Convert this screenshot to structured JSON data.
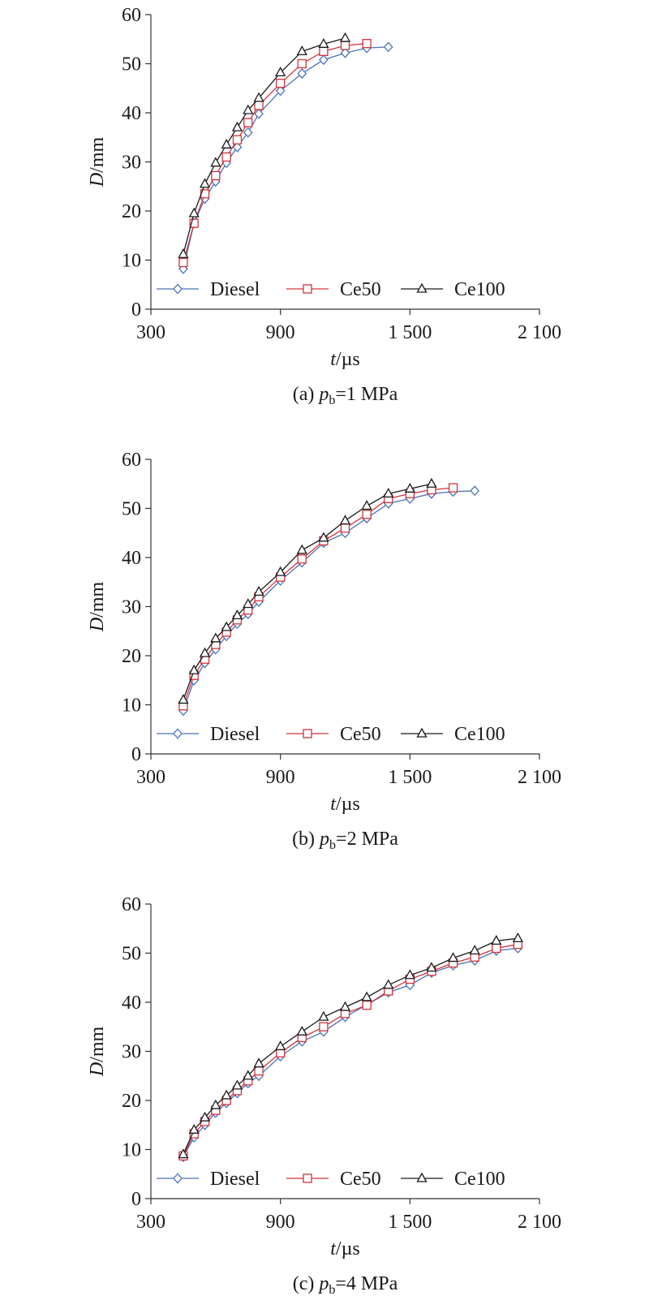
{
  "chart_data": [
    {
      "type": "line",
      "caption": {
        "prefix": "(a) ",
        "var": "p",
        "sub": "b",
        "suffix": "=1 MPa"
      },
      "xlabel": {
        "var": "t",
        "unit": "/µs"
      },
      "ylabel": {
        "var": "D",
        "unit": "/mm"
      },
      "xlim": [
        300,
        2100
      ],
      "ylim": [
        0,
        60
      ],
      "xticks": [
        300,
        900,
        1500,
        2100
      ],
      "xtick_labels": [
        "300",
        "900",
        "1 500",
        "2 100"
      ],
      "yticks": [
        0,
        10,
        20,
        30,
        40,
        50,
        60
      ],
      "ytick_labels": [
        "0",
        "10",
        "20",
        "30",
        "40",
        "50",
        "60"
      ],
      "legend_position": "bottom",
      "series": [
        {
          "name": "Diesel",
          "marker": "diamond",
          "color": "#4a72b8",
          "x": [
            450,
            500,
            550,
            600,
            650,
            700,
            750,
            800,
            900,
            1000,
            1100,
            1200,
            1300,
            1400
          ],
          "y": [
            8.2,
            17.5,
            22.5,
            26,
            29.8,
            33,
            36,
            39.8,
            44.5,
            48,
            50.8,
            52.2,
            53.2,
            53.4
          ]
        },
        {
          "name": "Ce50",
          "marker": "square",
          "color": "#d2343c",
          "x": [
            450,
            500,
            550,
            600,
            650,
            700,
            750,
            800,
            900,
            1000,
            1100,
            1200,
            1300
          ],
          "y": [
            9.5,
            17.5,
            23.5,
            27.2,
            31,
            34.5,
            38,
            41.5,
            46,
            50,
            52.5,
            53.7,
            54.1
          ]
        },
        {
          "name": "Ce100",
          "marker": "triangle",
          "color": "#1a1a1a",
          "x": [
            450,
            500,
            550,
            600,
            650,
            700,
            750,
            800,
            900,
            1000,
            1100,
            1200
          ],
          "y": [
            11.2,
            19.5,
            25.5,
            29.8,
            33.5,
            37,
            40.5,
            43,
            48.2,
            52.5,
            54,
            55.2
          ]
        }
      ]
    },
    {
      "type": "line",
      "caption": {
        "prefix": "(b) ",
        "var": "p",
        "sub": "b",
        "suffix": "=2 MPa"
      },
      "xlabel": {
        "var": "t",
        "unit": "/µs"
      },
      "ylabel": {
        "var": "D",
        "unit": "/mm"
      },
      "xlim": [
        300,
        2100
      ],
      "ylim": [
        0,
        60
      ],
      "xticks": [
        300,
        900,
        1500,
        2100
      ],
      "xtick_labels": [
        "300",
        "900",
        "1 500",
        "2 100"
      ],
      "yticks": [
        0,
        10,
        20,
        30,
        40,
        50,
        60
      ],
      "ytick_labels": [
        "0",
        "10",
        "20",
        "30",
        "40",
        "50",
        "60"
      ],
      "legend_position": "bottom",
      "series": [
        {
          "name": "Diesel",
          "marker": "diamond",
          "color": "#4a72b8",
          "x": [
            450,
            500,
            550,
            600,
            650,
            700,
            750,
            800,
            900,
            1000,
            1100,
            1200,
            1300,
            1400,
            1500,
            1600,
            1700,
            1800
          ],
          "y": [
            8.8,
            15,
            18.5,
            21.3,
            24,
            26.5,
            28.5,
            31,
            35.3,
            39,
            43,
            45,
            48,
            51,
            52,
            53,
            53.4,
            53.6
          ]
        },
        {
          "name": "Ce50",
          "marker": "square",
          "color": "#d2343c",
          "x": [
            450,
            500,
            550,
            600,
            650,
            700,
            750,
            800,
            900,
            1000,
            1100,
            1200,
            1300,
            1400,
            1500,
            1600,
            1700
          ],
          "y": [
            9.8,
            16,
            19.3,
            22.3,
            24.8,
            27.3,
            29.3,
            32,
            36,
            39.7,
            43.4,
            46,
            48.8,
            52,
            53,
            53.8,
            54.2
          ]
        },
        {
          "name": "Ce100",
          "marker": "triangle",
          "color": "#1a1a1a",
          "x": [
            450,
            500,
            550,
            600,
            650,
            700,
            750,
            800,
            900,
            1000,
            1100,
            1200,
            1300,
            1400,
            1500,
            1600
          ],
          "y": [
            11,
            17,
            20.5,
            23.5,
            25.8,
            28.2,
            30.5,
            33,
            37,
            41.5,
            44,
            47.5,
            50.5,
            53,
            54,
            55
          ]
        }
      ]
    },
    {
      "type": "line",
      "caption": {
        "prefix": "(c) ",
        "var": "p",
        "sub": "b",
        "suffix": "=4 MPa"
      },
      "xlabel": {
        "var": "t",
        "unit": "/µs"
      },
      "ylabel": {
        "var": "D",
        "unit": "/mm"
      },
      "xlim": [
        300,
        2100
      ],
      "ylim": [
        0,
        60
      ],
      "xticks": [
        300,
        900,
        1500,
        2100
      ],
      "xtick_labels": [
        "300",
        "900",
        "1 500",
        "2 100"
      ],
      "yticks": [
        0,
        10,
        20,
        30,
        40,
        50,
        60
      ],
      "ytick_labels": [
        "0",
        "10",
        "20",
        "30",
        "40",
        "50",
        "60"
      ],
      "legend_position": "bottom",
      "series": [
        {
          "name": "Diesel",
          "marker": "diamond",
          "color": "#4a72b8",
          "x": [
            450,
            500,
            550,
            600,
            650,
            700,
            750,
            800,
            900,
            1000,
            1100,
            1200,
            1300,
            1400,
            1500,
            1600,
            1700,
            1800,
            1900,
            2000
          ],
          "y": [
            8.5,
            12.5,
            15,
            17.5,
            19.5,
            21.5,
            23.5,
            25,
            29,
            32,
            34,
            37,
            39.5,
            42,
            43.5,
            46,
            47.5,
            48.5,
            50.5,
            51
          ]
        },
        {
          "name": "Ce50",
          "marker": "square",
          "color": "#d2343c",
          "x": [
            450,
            500,
            550,
            600,
            650,
            700,
            750,
            800,
            900,
            1000,
            1100,
            1200,
            1300,
            1400,
            1500,
            1600,
            1700,
            1800,
            1900,
            2000
          ],
          "y": [
            8.7,
            13.2,
            15.7,
            18,
            20,
            22,
            24,
            26,
            29.7,
            32.8,
            35,
            37.7,
            39.4,
            42.3,
            44.7,
            46.3,
            48,
            49.2,
            51,
            51.8
          ]
        },
        {
          "name": "Ce100",
          "marker": "triangle",
          "color": "#1a1a1a",
          "x": [
            450,
            500,
            550,
            600,
            650,
            700,
            750,
            800,
            900,
            1000,
            1100,
            1200,
            1300,
            1400,
            1500,
            1600,
            1700,
            1800,
            1900,
            2000
          ],
          "y": [
            9,
            14,
            16.5,
            19,
            21,
            23,
            25,
            27.5,
            31,
            34,
            37,
            39,
            41,
            43.5,
            45.5,
            47,
            49,
            50.5,
            52.5,
            53
          ]
        }
      ]
    }
  ]
}
